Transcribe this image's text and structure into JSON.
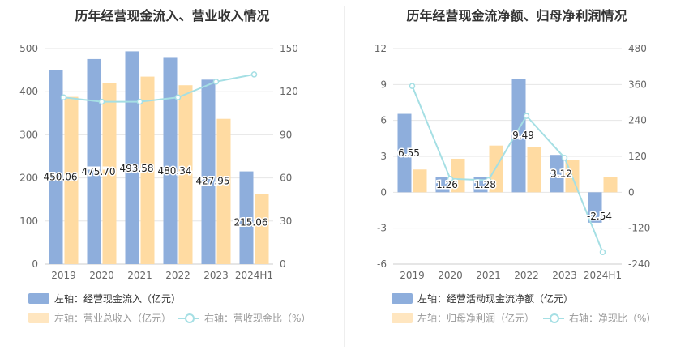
{
  "chart_data": [
    {
      "type": "bar",
      "title": "历年经营现金流入、营业收入情况",
      "categories": [
        "2019",
        "2020",
        "2021",
        "2022",
        "2023",
        "2024H1"
      ],
      "y_left": {
        "ticks": [
          "0",
          "100",
          "200",
          "300",
          "400",
          "500"
        ],
        "ylim": [
          0,
          500
        ]
      },
      "y_right": {
        "ticks": [
          "0",
          "30",
          "60",
          "90",
          "120",
          "150"
        ],
        "ylim": [
          0,
          150
        ]
      },
      "grid": true,
      "series": [
        {
          "name": "左轴：经营现金流入（亿元）",
          "kind": "bar",
          "axis": "left",
          "color": "#8eaedc",
          "values": [
            450.06,
            475.7,
            493.58,
            480.34,
            427.95,
            215.06
          ],
          "labels": [
            "450.06",
            "475.70",
            "493.58",
            "480.34",
            "427.95",
            "215.06"
          ]
        },
        {
          "name": "左轴：营业总收入（亿元）",
          "kind": "bar",
          "axis": "left",
          "color": "#ffdba2",
          "values": [
            388,
            420,
            435,
            415,
            337,
            163
          ]
        },
        {
          "name": "右轴：营收现金比（%）",
          "kind": "line",
          "axis": "right",
          "color": "#a5dfe4",
          "values": [
            116,
            113,
            113,
            116,
            127,
            132
          ]
        }
      ]
    },
    {
      "type": "bar",
      "title": "历年经营现金流净额、归母净利润情况",
      "categories": [
        "2019",
        "2020",
        "2021",
        "2022",
        "2023",
        "2024H1"
      ],
      "y_left": {
        "ticks": [
          "-6",
          "-3",
          "0",
          "3",
          "6",
          "9",
          "12"
        ],
        "ylim": [
          -6,
          12
        ]
      },
      "y_right": {
        "ticks": [
          "-240",
          "-120",
          "0",
          "120",
          "240",
          "360",
          "480"
        ],
        "ylim": [
          -240,
          480
        ]
      },
      "grid": true,
      "series": [
        {
          "name": "左轴：经营活动现金流净额（亿元）",
          "kind": "bar",
          "axis": "left",
          "color": "#8eaedc",
          "values": [
            6.55,
            1.26,
            1.28,
            9.49,
            3.12,
            -2.54
          ],
          "labels": [
            "6.55",
            "1.26",
            "1.28",
            "9.49",
            "3.12",
            "-2.54"
          ]
        },
        {
          "name": "左轴：归母净利润（亿元）",
          "kind": "bar",
          "axis": "left",
          "color": "#ffdba2",
          "values": [
            1.9,
            2.8,
            3.9,
            3.8,
            2.7,
            1.3
          ]
        },
        {
          "name": "右轴：净现比（%）",
          "kind": "line",
          "axis": "right",
          "color": "#a5dfe4",
          "values": [
            355,
            45,
            40,
            255,
            115,
            -200
          ]
        }
      ]
    }
  ]
}
